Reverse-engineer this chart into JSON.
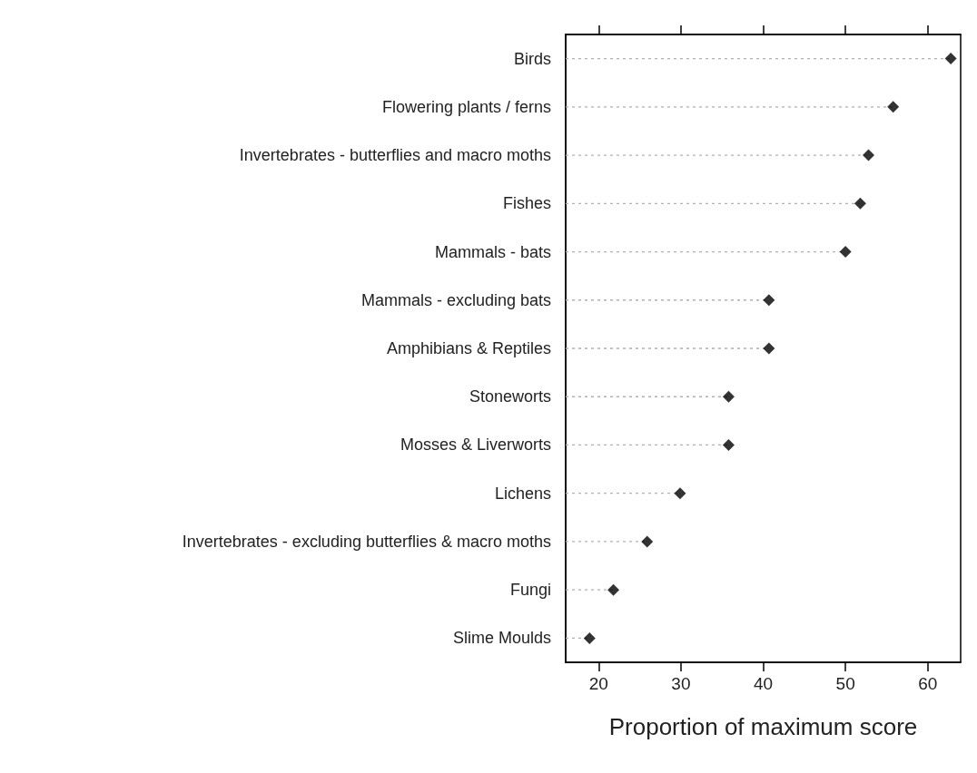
{
  "chart_data": {
    "type": "lollipop",
    "orientation": "horizontal",
    "xlabel": "Proportion of maximum score",
    "categories": [
      "Birds",
      "Flowering plants / ferns",
      "Invertebrates - butterflies and macro moths",
      "Fishes",
      "Mammals - bats",
      "Mammals - excluding bats",
      "Amphibians & Reptiles",
      "Stoneworts",
      "Mosses & Liverworts",
      "Lichens",
      "Invertebrates - excluding butterflies & macro moths",
      "Fungi",
      "Slime Moulds"
    ],
    "values": [
      62.8,
      55.8,
      52.8,
      51.8,
      50,
      40.7,
      40.7,
      35.8,
      35.8,
      29.9,
      25.9,
      21.8,
      18.9
    ],
    "color": "#000000",
    "xlim": [
      16,
      64
    ],
    "xticks": [
      20,
      30,
      40,
      50,
      60
    ],
    "marker": "diamond",
    "line_style": "dotted"
  }
}
